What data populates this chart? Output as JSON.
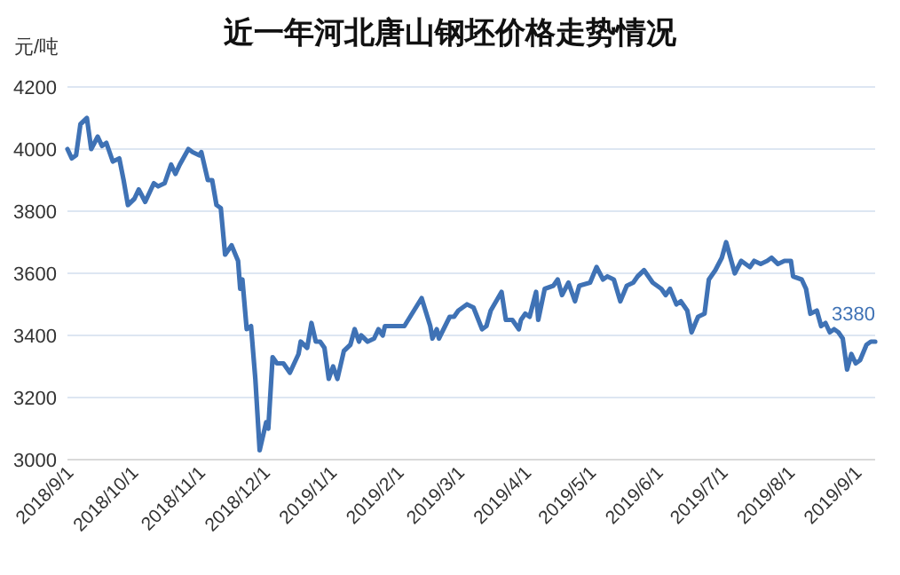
{
  "chart_data": {
    "type": "line",
    "title": "近一年河北唐山钢坯价格走势情况",
    "ylabel": "元/吨",
    "x": [
      "2018-09-01",
      "2018-09-03",
      "2018-09-05",
      "2018-09-07",
      "2018-09-10",
      "2018-09-12",
      "2018-09-15",
      "2018-09-17",
      "2018-09-19",
      "2018-09-22",
      "2018-09-25",
      "2018-09-27",
      "2018-09-29",
      "2018-10-02",
      "2018-10-04",
      "2018-10-07",
      "2018-10-11",
      "2018-10-13",
      "2018-10-16",
      "2018-10-19",
      "2018-10-21",
      "2018-10-23",
      "2018-10-27",
      "2018-10-29",
      "2018-11-01",
      "2018-11-02",
      "2018-11-05",
      "2018-11-07",
      "2018-11-09",
      "2018-11-11",
      "2018-11-13",
      "2018-11-16",
      "2018-11-19",
      "2018-11-20",
      "2018-11-21",
      "2018-11-23",
      "2018-11-25",
      "2018-11-27",
      "2018-11-29",
      "2018-12-02",
      "2018-12-03",
      "2018-12-05",
      "2018-12-07",
      "2018-12-10",
      "2018-12-13",
      "2018-12-17",
      "2018-12-18",
      "2018-12-21",
      "2018-12-23",
      "2018-12-25",
      "2018-12-27",
      "2018-12-29",
      "2018-12-31",
      "2019-01-02",
      "2019-01-04",
      "2019-01-07",
      "2019-01-10",
      "2019-01-12",
      "2019-01-14",
      "2019-01-15",
      "2019-01-18",
      "2019-01-21",
      "2019-01-23",
      "2019-01-25",
      "2019-01-26",
      "2019-02-04",
      "2019-02-12",
      "2019-02-16",
      "2019-02-17",
      "2019-02-19",
      "2019-02-20",
      "2019-02-25",
      "2019-02-27",
      "2019-03-01",
      "2019-03-05",
      "2019-03-08",
      "2019-03-12",
      "2019-03-14",
      "2019-03-16",
      "2019-03-21",
      "2019-03-23",
      "2019-03-26",
      "2019-03-29",
      "2019-03-30",
      "2019-04-01",
      "2019-04-03",
      "2019-04-06",
      "2019-04-07",
      "2019-04-10",
      "2019-04-14",
      "2019-04-16",
      "2019-04-18",
      "2019-04-21",
      "2019-04-24",
      "2019-04-26",
      "2019-05-01",
      "2019-05-04",
      "2019-05-07",
      "2019-05-09",
      "2019-05-12",
      "2019-05-15",
      "2019-05-18",
      "2019-05-21",
      "2019-05-23",
      "2019-05-26",
      "2019-05-28",
      "2019-05-30",
      "2019-06-03",
      "2019-06-05",
      "2019-06-07",
      "2019-06-10",
      "2019-06-12",
      "2019-06-15",
      "2019-06-17",
      "2019-06-20",
      "2019-06-23",
      "2019-06-25",
      "2019-06-28",
      "2019-07-01",
      "2019-07-03",
      "2019-07-05",
      "2019-07-07",
      "2019-07-10",
      "2019-07-14",
      "2019-07-16",
      "2019-07-19",
      "2019-07-22",
      "2019-07-24",
      "2019-07-27",
      "2019-07-30",
      "2019-08-02",
      "2019-08-03",
      "2019-08-07",
      "2019-08-09",
      "2019-08-11",
      "2019-08-14",
      "2019-08-16",
      "2019-08-18",
      "2019-08-20",
      "2019-08-22",
      "2019-08-24",
      "2019-08-26",
      "2019-08-28",
      "2019-08-30",
      "2019-09-01",
      "2019-09-03",
      "2019-09-06",
      "2019-09-08",
      "2019-09-10"
    ],
    "series": [
      {
        "color": "#3f72b5",
        "values": [
          4000,
          3970,
          3980,
          4080,
          4100,
          4000,
          4040,
          4010,
          4020,
          3960,
          3970,
          3900,
          3820,
          3840,
          3870,
          3830,
          3890,
          3880,
          3890,
          3950,
          3920,
          3950,
          4000,
          3990,
          3980,
          3990,
          3900,
          3900,
          3820,
          3810,
          3660,
          3690,
          3640,
          3550,
          3580,
          3420,
          3430,
          3260,
          3030,
          3120,
          3100,
          3330,
          3310,
          3310,
          3280,
          3340,
          3380,
          3360,
          3440,
          3380,
          3380,
          3360,
          3260,
          3300,
          3260,
          3350,
          3370,
          3420,
          3380,
          3400,
          3380,
          3390,
          3420,
          3400,
          3430,
          3430,
          3520,
          3430,
          3390,
          3420,
          3390,
          3460,
          3460,
          3480,
          3500,
          3490,
          3420,
          3430,
          3480,
          3540,
          3450,
          3450,
          3420,
          3450,
          3470,
          3460,
          3540,
          3450,
          3550,
          3560,
          3580,
          3530,
          3570,
          3510,
          3560,
          3570,
          3620,
          3580,
          3590,
          3580,
          3510,
          3560,
          3570,
          3590,
          3610,
          3590,
          3570,
          3550,
          3530,
          3550,
          3500,
          3510,
          3480,
          3410,
          3460,
          3470,
          3580,
          3610,
          3650,
          3700,
          3650,
          3600,
          3640,
          3620,
          3640,
          3630,
          3640,
          3650,
          3630,
          3640,
          3640,
          3590,
          3580,
          3550,
          3470,
          3480,
          3430,
          3440,
          3410,
          3420,
          3410,
          3390,
          3290,
          3340,
          3310,
          3320,
          3370,
          3380,
          3380
        ]
      }
    ],
    "xlim": [
      "2018-09-01",
      "2019-09-10"
    ],
    "xticks": [
      {
        "value": "2018-09-01",
        "label": "2018/9/1"
      },
      {
        "value": "2018-10-01",
        "label": "2018/10/1"
      },
      {
        "value": "2018-11-01",
        "label": "2018/11/1"
      },
      {
        "value": "2018-12-01",
        "label": "2018/12/1"
      },
      {
        "value": "2019-01-01",
        "label": "2019/1/1"
      },
      {
        "value": "2019-02-01",
        "label": "2019/2/1"
      },
      {
        "value": "2019-03-01",
        "label": "2019/3/1"
      },
      {
        "value": "2019-04-01",
        "label": "2019/4/1"
      },
      {
        "value": "2019-05-01",
        "label": "2019/5/1"
      },
      {
        "value": "2019-06-01",
        "label": "2019/6/1"
      },
      {
        "value": "2019-07-01",
        "label": "2019/7/1"
      },
      {
        "value": "2019-08-01",
        "label": "2019/8/1"
      },
      {
        "value": "2019-09-01",
        "label": "2019/9/1"
      }
    ],
    "ylim": [
      3000,
      4200
    ],
    "yticks": [
      3000,
      3200,
      3400,
      3600,
      3800,
      4000,
      4200
    ],
    "grid": "y",
    "marker": "none",
    "line_style": "solid",
    "annotations": [
      {
        "text": "3380",
        "x": "2019-09-10",
        "y": 3380
      }
    ]
  }
}
